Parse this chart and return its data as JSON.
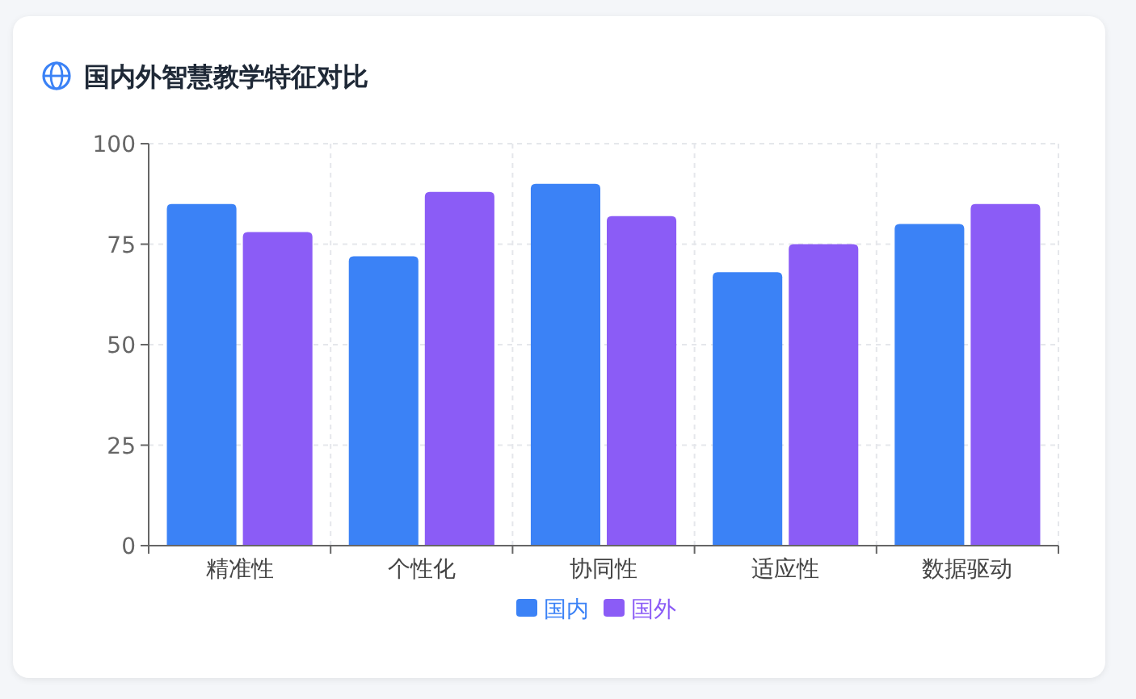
{
  "chart_data": {
    "type": "bar",
    "title": "国内外智慧教学特征对比",
    "categories": [
      "精准性",
      "个性化",
      "协同性",
      "适应性",
      "数据驱动"
    ],
    "series": [
      {
        "name": "国内",
        "color": "#3b82f6",
        "values": [
          85,
          72,
          90,
          68,
          80
        ]
      },
      {
        "name": "国外",
        "color": "#8b5cf6",
        "values": [
          78,
          88,
          82,
          75,
          85
        ]
      }
    ],
    "ylim": [
      0,
      100
    ],
    "yticks": [
      0,
      25,
      50,
      75,
      100
    ],
    "grid": true,
    "legend": "bottom"
  }
}
